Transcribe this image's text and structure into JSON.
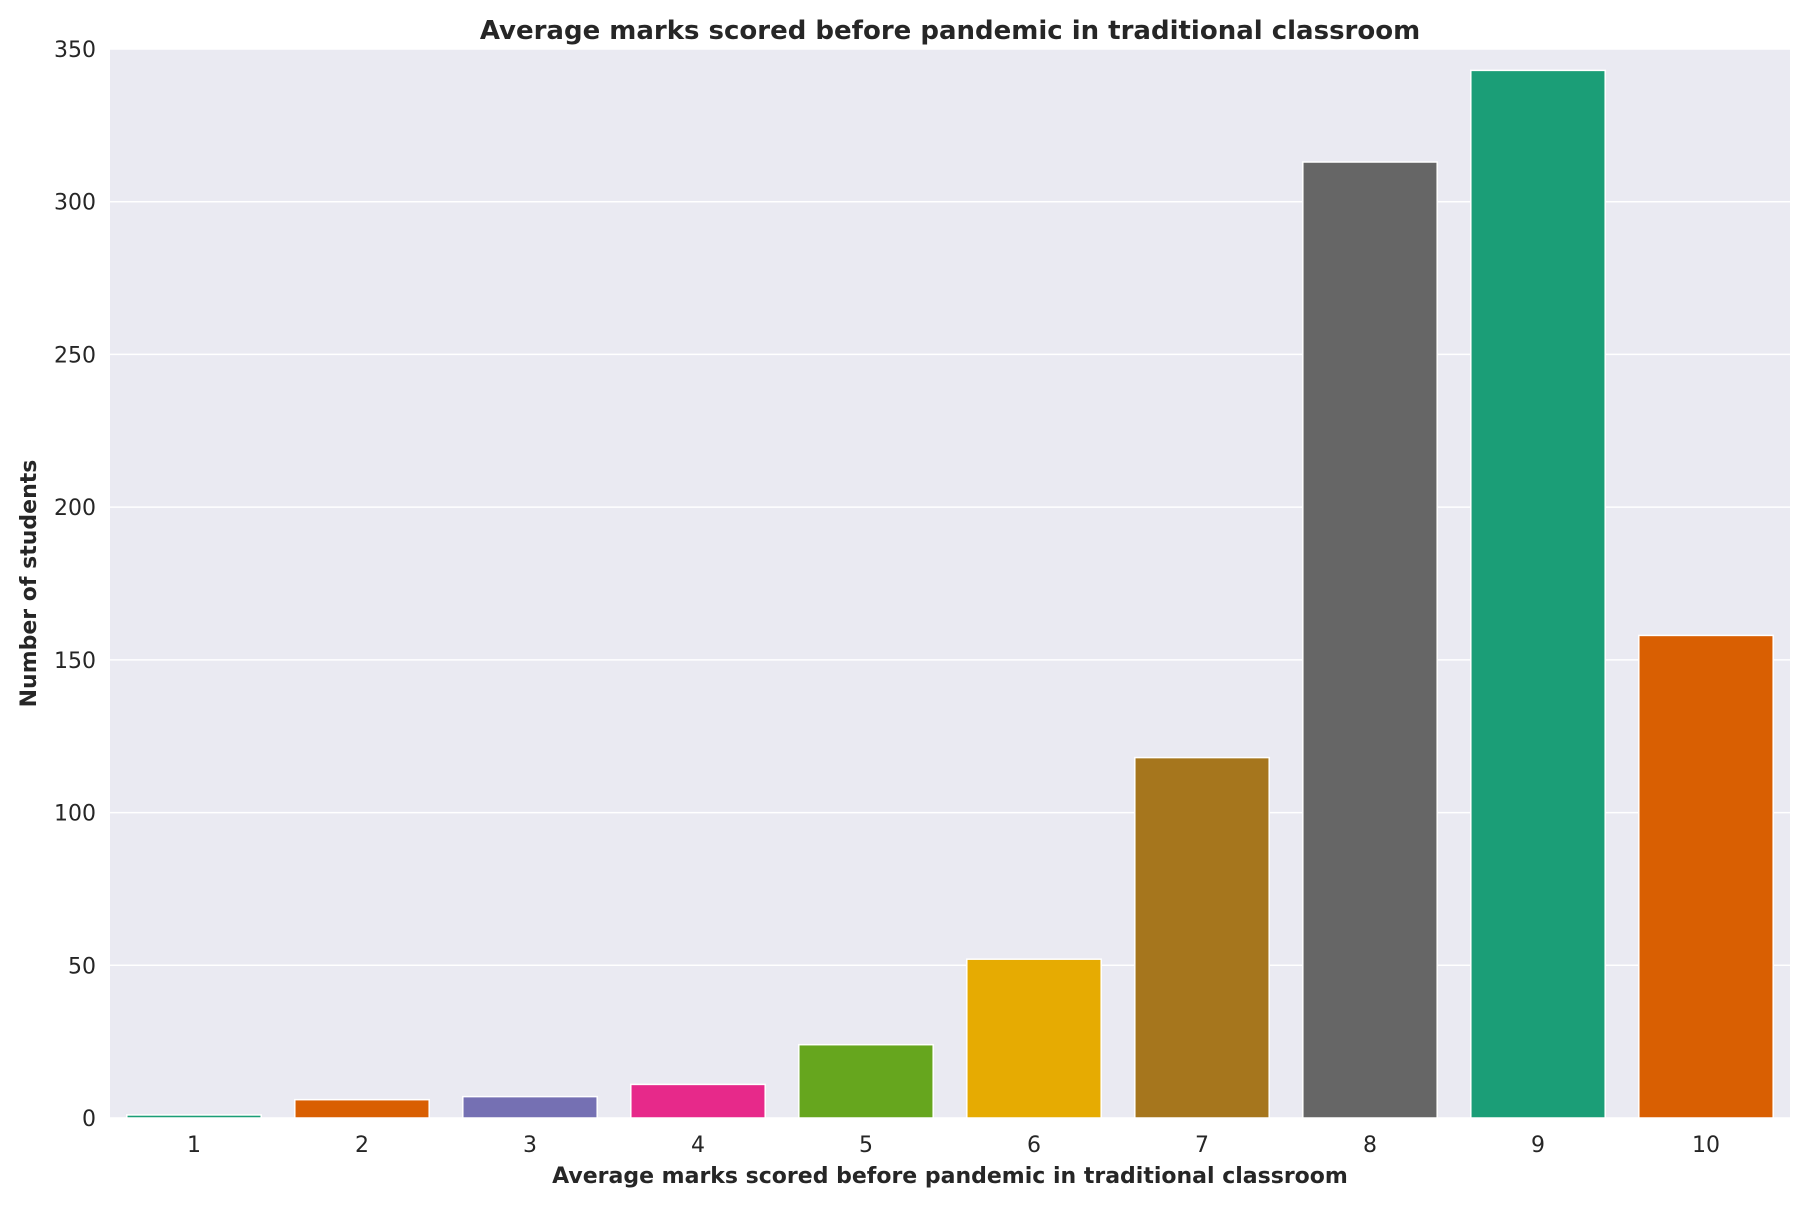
{
  "chart_data": {
    "type": "bar",
    "title": "Average marks scored before pandemic in traditional classroom",
    "xlabel": "Average marks scored before pandemic in traditional classroom",
    "ylabel": "Number of students",
    "categories": [
      "1",
      "2",
      "3",
      "4",
      "5",
      "6",
      "7",
      "8",
      "9",
      "10"
    ],
    "values": [
      1,
      6,
      7,
      11,
      24,
      52,
      118,
      313,
      343,
      158
    ],
    "colors": [
      "#1b9e77",
      "#d95f02",
      "#7570b3",
      "#e7298a",
      "#66a61e",
      "#e6ab02",
      "#a6761d",
      "#666666",
      "#1b9e77",
      "#d95f02"
    ],
    "ylim": [
      0,
      350
    ],
    "yticks": [
      0,
      50,
      100,
      150,
      200,
      250,
      300,
      350
    ],
    "grid": true,
    "background": "#eaeaf2",
    "gridColor": "#ffffff"
  }
}
